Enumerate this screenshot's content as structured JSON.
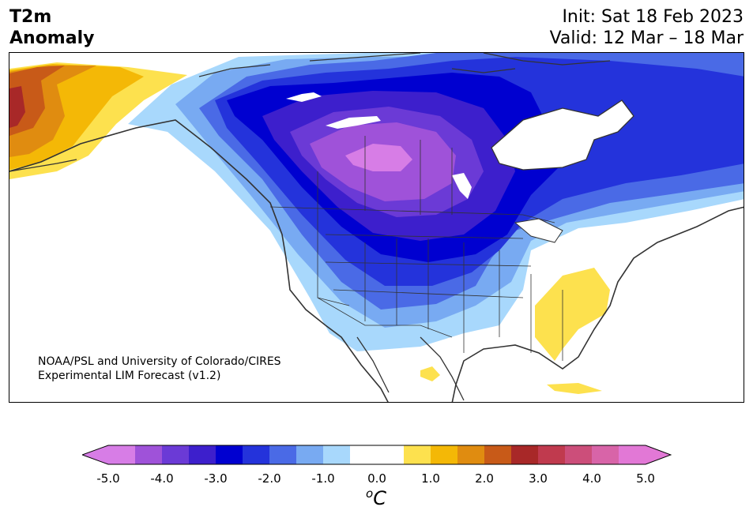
{
  "header": {
    "title_line1": "T2m",
    "title_line2": "Anomaly",
    "init": "Init: Sat 18 Feb 2023",
    "valid": "Valid: 12 Mar – 18 Mar"
  },
  "credit": {
    "line1": "NOAA/PSL and University of Colorado/CIRES",
    "line2": "Experimental LIM Forecast (v1.2)"
  },
  "colorbar": {
    "ticks": [
      "-5.0",
      "-4.0",
      "-3.0",
      "-2.0",
      "-1.0",
      "0.0",
      "1.0",
      "2.0",
      "3.0",
      "4.0",
      "5.0"
    ],
    "unit_sup": "o",
    "unit": "C",
    "colors": [
      "#d77de6",
      "#9f52d9",
      "#6b3ad6",
      "#3d1fcc",
      "#0000d0",
      "#2433db",
      "#4a6ae6",
      "#78aaf2",
      "#a8d8fc",
      "#ffffff",
      "#ffffff",
      "#fde14e",
      "#f4b806",
      "#e08c10",
      "#c85a18",
      "#a82828",
      "#c03a4e",
      "#cc4e7a",
      "#d864a8",
      "#e278d6"
    ]
  },
  "map": {
    "colors": {
      "c_m5": "#d77de6",
      "c_m4": "#9f52d9",
      "c_m35": "#6b3ad6",
      "c_m3": "#3d1fcc",
      "c_m25": "#0000d0",
      "c_m2": "#2433db",
      "c_m15": "#4a6ae6",
      "c_m1": "#78aaf2",
      "c_m05": "#a8d8fc",
      "c_p05": "#fde14e",
      "c_p1": "#f4b806",
      "c_p15": "#e08c10",
      "c_p2": "#c85a18",
      "c_p25": "#a82828",
      "coast": "#333333"
    }
  }
}
